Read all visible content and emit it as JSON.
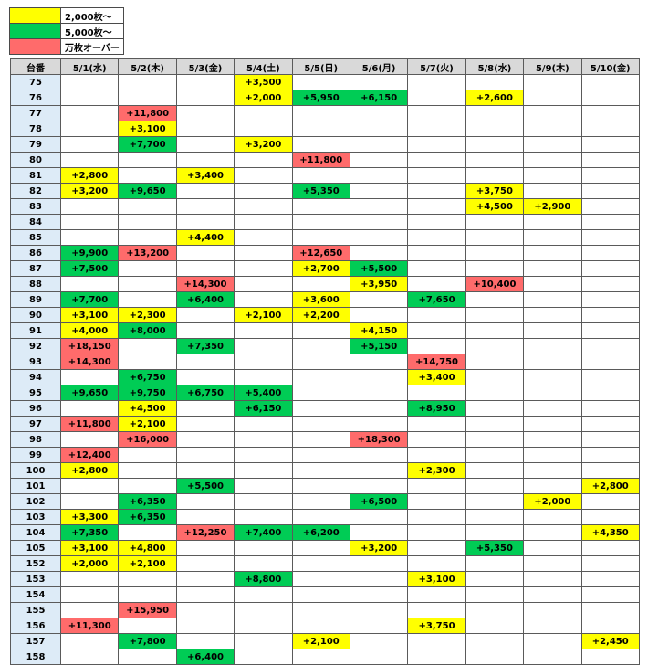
{
  "legend": [
    {
      "label": "2,000枚～",
      "color": "#ffff00"
    },
    {
      "label": "5,000枚～",
      "color": "#00cc55"
    },
    {
      "label": "万枚オーバー",
      "color": "#ff6b6b"
    }
  ],
  "table": {
    "corner": "台番",
    "columns": [
      "5/1(水)",
      "5/2(木)",
      "5/3(金)",
      "5/4(土)",
      "5/5(日)",
      "5/6(月)",
      "5/7(火)",
      "5/8(水)",
      "5/9(木)",
      "5/10(金)"
    ],
    "rows": [
      {
        "num": "75",
        "cells": [
          "",
          "",
          "",
          "+3,500",
          "",
          "",
          "",
          "",
          "",
          ""
        ]
      },
      {
        "num": "76",
        "cells": [
          "",
          "",
          "",
          "+2,000",
          "+5,950",
          "+6,150",
          "",
          "+2,600",
          "",
          ""
        ]
      },
      {
        "num": "77",
        "cells": [
          "",
          "+11,800",
          "",
          "",
          "",
          "",
          "",
          "",
          "",
          ""
        ]
      },
      {
        "num": "78",
        "cells": [
          "",
          "+3,100",
          "",
          "",
          "",
          "",
          "",
          "",
          "",
          ""
        ]
      },
      {
        "num": "79",
        "cells": [
          "",
          "+7,700",
          "",
          "+3,200",
          "",
          "",
          "",
          "",
          "",
          ""
        ]
      },
      {
        "num": "80",
        "cells": [
          "",
          "",
          "",
          "",
          "+11,800",
          "",
          "",
          "",
          "",
          ""
        ]
      },
      {
        "num": "81",
        "cells": [
          "+2,800",
          "",
          "+3,400",
          "",
          "",
          "",
          "",
          "",
          "",
          ""
        ]
      },
      {
        "num": "82",
        "cells": [
          "+3,200",
          "+9,650",
          "",
          "",
          "+5,350",
          "",
          "",
          "+3,750",
          "",
          ""
        ]
      },
      {
        "num": "83",
        "cells": [
          "",
          "",
          "",
          "",
          "",
          "",
          "",
          "+4,500",
          "+2,900",
          ""
        ]
      },
      {
        "num": "84",
        "cells": [
          "",
          "",
          "",
          "",
          "",
          "",
          "",
          "",
          "",
          ""
        ]
      },
      {
        "num": "85",
        "cells": [
          "",
          "",
          "+4,400",
          "",
          "",
          "",
          "",
          "",
          "",
          ""
        ]
      },
      {
        "num": "86",
        "cells": [
          "+9,900",
          "+13,200",
          "",
          "",
          "+12,650",
          "",
          "",
          "",
          "",
          ""
        ]
      },
      {
        "num": "87",
        "cells": [
          "+7,500",
          "",
          "",
          "",
          "+2,700",
          "+5,500",
          "",
          "",
          "",
          ""
        ]
      },
      {
        "num": "88",
        "cells": [
          "",
          "",
          "+14,300",
          "",
          "",
          "+3,950",
          "",
          "+10,400",
          "",
          ""
        ]
      },
      {
        "num": "89",
        "cells": [
          "+7,700",
          "",
          "+6,400",
          "",
          "+3,600",
          "",
          "+7,650",
          "",
          "",
          ""
        ]
      },
      {
        "num": "90",
        "cells": [
          "+3,100",
          "+2,300",
          "",
          "+2,100",
          "+2,200",
          "",
          "",
          "",
          "",
          ""
        ]
      },
      {
        "num": "91",
        "cells": [
          "+4,000",
          "+8,000",
          "",
          "",
          "",
          "+4,150",
          "",
          "",
          "",
          ""
        ]
      },
      {
        "num": "92",
        "cells": [
          "+18,150",
          "",
          "+7,350",
          "",
          "",
          "+5,150",
          "",
          "",
          "",
          ""
        ]
      },
      {
        "num": "93",
        "cells": [
          "+14,300",
          "",
          "",
          "",
          "",
          "",
          "+14,750",
          "",
          "",
          ""
        ]
      },
      {
        "num": "94",
        "cells": [
          "",
          "+6,750",
          "",
          "",
          "",
          "",
          "+3,400",
          "",
          "",
          ""
        ]
      },
      {
        "num": "95",
        "cells": [
          "+9,650",
          "+9,750",
          "+6,750",
          "+5,400",
          "",
          "",
          "",
          "",
          "",
          ""
        ]
      },
      {
        "num": "96",
        "cells": [
          "",
          "+4,500",
          "",
          "+6,150",
          "",
          "",
          "+8,950",
          "",
          "",
          ""
        ]
      },
      {
        "num": "97",
        "cells": [
          "+11,800",
          "+2,100",
          "",
          "",
          "",
          "",
          "",
          "",
          "",
          ""
        ]
      },
      {
        "num": "98",
        "cells": [
          "",
          "+16,000",
          "",
          "",
          "",
          "+18,300",
          "",
          "",
          "",
          ""
        ]
      },
      {
        "num": "99",
        "cells": [
          "+12,400",
          "",
          "",
          "",
          "",
          "",
          "",
          "",
          "",
          ""
        ]
      },
      {
        "num": "100",
        "cells": [
          "+2,800",
          "",
          "",
          "",
          "",
          "",
          "+2,300",
          "",
          "",
          ""
        ]
      },
      {
        "num": "101",
        "cells": [
          "",
          "",
          "+5,500",
          "",
          "",
          "",
          "",
          "",
          "",
          "+2,800"
        ]
      },
      {
        "num": "102",
        "cells": [
          "",
          "+6,350",
          "",
          "",
          "",
          "+6,500",
          "",
          "",
          "+2,000",
          ""
        ]
      },
      {
        "num": "103",
        "cells": [
          "+3,300",
          "+6,350",
          "",
          "",
          "",
          "",
          "",
          "",
          "",
          ""
        ]
      },
      {
        "num": "104",
        "cells": [
          "+7,350",
          "",
          "+12,250",
          "+7,400",
          "+6,200",
          "",
          "",
          "",
          "",
          "+4,350"
        ]
      },
      {
        "num": "105",
        "cells": [
          "+3,100",
          "+4,800",
          "",
          "",
          "",
          "+3,200",
          "",
          "+5,350",
          "",
          ""
        ]
      },
      {
        "num": "152",
        "cells": [
          "+2,000",
          "+2,100",
          "",
          "",
          "",
          "",
          "",
          "",
          "",
          ""
        ]
      },
      {
        "num": "153",
        "cells": [
          "",
          "",
          "",
          "+8,800",
          "",
          "",
          "+3,100",
          "",
          "",
          ""
        ]
      },
      {
        "num": "154",
        "cells": [
          "",
          "",
          "",
          "",
          "",
          "",
          "",
          "",
          "",
          ""
        ]
      },
      {
        "num": "155",
        "cells": [
          "",
          "+15,950",
          "",
          "",
          "",
          "",
          "",
          "",
          "",
          ""
        ]
      },
      {
        "num": "156",
        "cells": [
          "+11,300",
          "",
          "",
          "",
          "",
          "",
          "+3,750",
          "",
          "",
          ""
        ]
      },
      {
        "num": "157",
        "cells": [
          "",
          "+7,800",
          "",
          "",
          "+2,100",
          "",
          "",
          "",
          "",
          "+2,450"
        ]
      },
      {
        "num": "158",
        "cells": [
          "",
          "",
          "+6,400",
          "",
          "",
          "",
          "",
          "",
          "",
          ""
        ]
      }
    ]
  }
}
